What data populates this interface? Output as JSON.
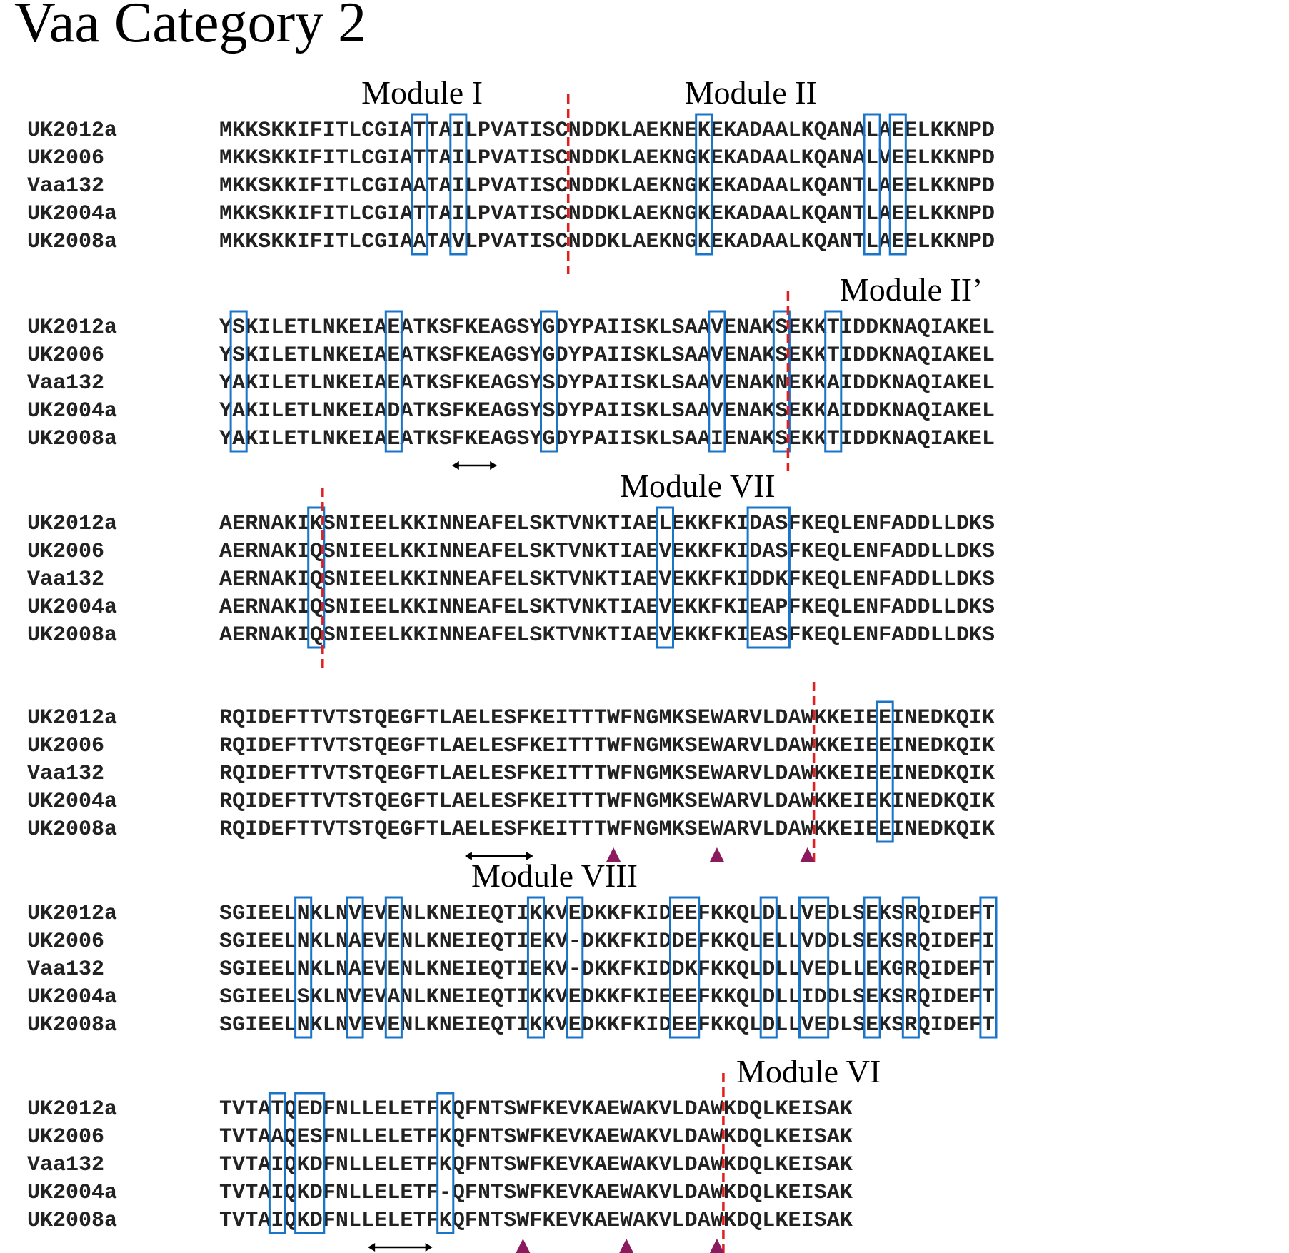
{
  "title": "Vaa Category 2",
  "blocks": [
    {
      "names": [
        "UK2012a",
        "UK2006",
        "Vaa132",
        "UK2004a",
        "UK2008a"
      ],
      "seqs": [
        "MKKSKKIFITLCGIATTAILPVATISCNDDKLAEKNEKEKADAALKQANALAEELKKNPD",
        "MKKSKKIFITLCGIATTAILPVATISCNDDKLAEKNGKEKADAALKQANALVEELKKNPD",
        "MKKSKKIFITLCGIAATAILPVATISCNDDKLAEKNGKEKADAALKQANTLAEELKKNPD",
        "MKKSKKIFITLCGIATTAILPVATISCNDDKLAEKNGKEKADAALKQANTLAEELKKNPD",
        "MKKSKKIFITLCGIAATAVLPVATISCNDDKLAEKNGKEKADAALKQANTLAEELKKNPD"
      ],
      "modules": [
        {
          "label": "Module I",
          "col": 11
        },
        {
          "label": "Module II",
          "col": 36
        }
      ],
      "boxes": [
        [
          15,
          1
        ],
        [
          18,
          1
        ],
        [
          37,
          1
        ],
        [
          50,
          1
        ],
        [
          52,
          1
        ]
      ],
      "dividers": [
        {
          "col": 27,
          "ext_top": 1
        }
      ],
      "arrows": [],
      "triangles": []
    },
    {
      "names": [
        "UK2012a",
        "UK2006",
        "Vaa132",
        "UK2004a",
        "UK2008a"
      ],
      "seqs": [
        "YSKILETLNKEIAEATKSFKEAGSYGDYPAIISKLSAAVENAKSEKKTIDDKNAQIAKEL",
        "YSKILETLNKEIAEATKSFKEAGSYGDYPAIISKLSAAVENAKSEKKTIDDKNAQIAKEL",
        "YAKILETLNKEIAEATKSFKEAGSYSDYPAIISKLSAAVENAKNEKKAIDDKNAQIAKEL",
        "YAKILETLNKEIADATKSFKEAGSYSDYPAIISKLSAAVENAKSEKKAIDDKNAQIAKEL",
        "YAKILETLNKEIAEATKSFKEAGSYGDYPAIISKLSAAIENAKSEKKTIDDKNAQIAKEL"
      ],
      "modules": [
        {
          "label": "Module II’",
          "col": 48
        }
      ],
      "boxes": [
        [
          1,
          1
        ],
        [
          13,
          1
        ],
        [
          25,
          1
        ],
        [
          38,
          1
        ],
        [
          43,
          1
        ],
        [
          47,
          1
        ]
      ],
      "dividers": [
        {
          "col": 44,
          "ext_top": 1
        }
      ],
      "arrows": [
        {
          "col": 18,
          "len": 3.5
        }
      ],
      "triangles": []
    },
    {
      "names": [
        "UK2012a",
        "UK2006",
        "Vaa132",
        "UK2004a",
        "UK2008a"
      ],
      "seqs": [
        "AERNAKIKSNIEELKKINNEAFELSKTVNKTIAELEKKFKIDASFKEQLENFADDLLDKS",
        "AERNAKIQSNIEELKKINNEAFELSKTVNKTIAEVEKKFKIDASFKEQLENFADDLLDKS",
        "AERNAKIQSNIEELKKINNEAFELSKTVNKTIAEVEKKFKIDDKFKEQLENFADDLLDKS",
        "AERNAKIQSNIEELKKINNEAFELSKTVNKTIAEVEKKFKIEAPFKEQLENFADDLLDKS",
        "AERNAKIQSNIEELKKINNEAFELSKTVNKTIAEVEKKFKIEASFKEQLENFADDLLDKS"
      ],
      "modules": [
        {
          "label": "Module VII",
          "col": 31
        }
      ],
      "boxes": [
        [
          7,
          1
        ],
        [
          34,
          1
        ],
        [
          41,
          3
        ]
      ],
      "dividers": [
        {
          "col": 8,
          "ext_top": 1
        }
      ],
      "arrows": [],
      "triangles": []
    },
    {
      "names": [
        "UK2012a",
        "UK2006",
        "Vaa132",
        "UK2004a",
        "UK2008a"
      ],
      "seqs": [
        "RQIDEFTTVTSTQEGFTLAELESFKEITTTWFNGMKSEWARVLDAWKKEIEEINEDKQIK",
        "RQIDEFTTVTSTQEGFTLAELESFKEITTTWFNGMKSEWARVLDAWKKEIEEINEDKQIK",
        "RQIDEFTTVTSTQEGFTLAELESFKEITTTWFNGMKSEWARVLDAWKKEIEEINEDKQIK",
        "RQIDEFTTVTSTQEGFTLAELESFKEITTTWFNGMKSEWARVLDAWKKEIEKINEDKQIK",
        "RQIDEFTTVTSTQEGFTLAELESFKEITTTWFNGMKSEWARVLDAWKKEIEEINEDKQIK"
      ],
      "modules": [],
      "boxes": [
        [
          51,
          1
        ]
      ],
      "dividers": [
        {
          "col": 46,
          "ext_top": 1
        }
      ],
      "arrows": [
        {
          "col": 19,
          "len": 5.3
        }
      ],
      "triangles": [
        30.5,
        38.5,
        45.5
      ]
    },
    {
      "names": [
        "UK2012a",
        "UK2006",
        "Vaa132",
        "UK2004a",
        "UK2008a"
      ],
      "seqs": [
        "SGIEELNKLNVEVENLKNEIEQTIKKVEDKKFKIDEEFKKQLDLLVEDLSEKSRQIDEFT",
        "SGIEELNKLNAEVENLKNEIEQTIEKV-DKKFKIDDEFKKQLELLVDDLSEKSRQIDEFI",
        "SGIEELNKLNAEVENLKNEIEQTIEKV-DKKFKIDDKFKKQLDLLVEDLLEKGRQIDEFT",
        "SGIEELSKLNVEVANLKNEIEQTIKKVEDKKFKIEEEFKKQLDLLIDDLSEKSRQIDEFT",
        "SGIEELNKLNVEVENLKNEIEQTIKKVEDKKFKIDEEFKKQLDLLVEDLSEKSRQIDEFT"
      ],
      "modules": [
        {
          "label": "Module VIII",
          "col": 19.5
        }
      ],
      "boxes": [
        [
          6,
          1
        ],
        [
          10,
          1
        ],
        [
          13,
          1
        ],
        [
          24,
          1
        ],
        [
          27,
          1
        ],
        [
          35,
          2
        ],
        [
          42,
          1
        ],
        [
          45,
          2
        ],
        [
          50,
          1
        ],
        [
          53,
          1
        ],
        [
          59,
          1
        ]
      ],
      "dividers": [],
      "arrows": [],
      "triangles": []
    },
    {
      "names": [
        "UK2012a",
        "UK2006",
        "Vaa132",
        "UK2004a",
        "UK2008a"
      ],
      "seqs": [
        "TVTATQEDFNLLELETFKQFNTSWFKEVKAEWAKVLDAWKDQLKEISAK",
        "TVTAAQESFNLLELETFKQFNTSWFKEVKAEWAKVLDAWKDQLKEISAK",
        "TVTAIQKDFNLLELETFKQFNTSWFKEVKAEWAKVLDAWKDQLKEISAK",
        "TVTAIQKDFNLLELETF-QFNTSWFKEVKAEWAKVLDAWKDQLKEISAK",
        "TVTAIQKDFNLLELETFKQFNTSWFKEVKAEWAKVLDAWKDQLKEISAK"
      ],
      "modules": [
        {
          "label": "Module VI",
          "col": 40
        }
      ],
      "boxes": [
        [
          4,
          1
        ],
        [
          6,
          2
        ],
        [
          17,
          1
        ]
      ],
      "dividers": [
        {
          "col": 39,
          "ext_top": 1
        }
      ],
      "arrows": [
        {
          "col": 11.5,
          "len": 5
        }
      ],
      "triangles": [
        23.5,
        31.5,
        38.5
      ]
    }
  ]
}
